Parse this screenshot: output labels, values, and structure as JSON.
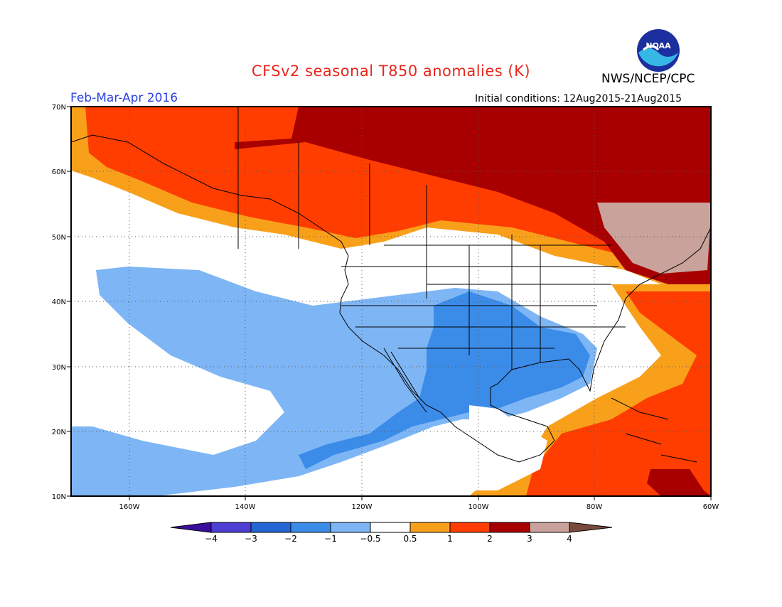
{
  "header": {
    "title": "CFSv2 seasonal T850 anomalies (K)",
    "agency": "NWS/NCEP/CPC",
    "period": "Feb-Mar-Apr 2016",
    "initial_conditions": "Initial conditions: 12Aug2015-21Aug2015",
    "logo_text": "NOAA"
  },
  "map": {
    "lon_labels": [
      "160W",
      "140W",
      "120W",
      "100W",
      "80W",
      "60W"
    ],
    "lat_labels": [
      "70N",
      "60N",
      "50N",
      "40N",
      "30N",
      "20N",
      "10N"
    ],
    "lon_range": [
      -170,
      -60
    ],
    "lat_range": [
      10,
      70
    ]
  },
  "legend": {
    "tick_labels": [
      "-4",
      "-3",
      "-2",
      "-1",
      "-0.5",
      "0.5",
      "1",
      "2",
      "3",
      "4"
    ],
    "colors": [
      "#3b0f9e",
      "#4d3fd3",
      "#2466d4",
      "#3b8ce8",
      "#7eb6f5",
      "#ffffff",
      "#f9a01b",
      "#ff3d00",
      "#a80000",
      "#c9a39b",
      "#7a4a3c"
    ]
  }
}
